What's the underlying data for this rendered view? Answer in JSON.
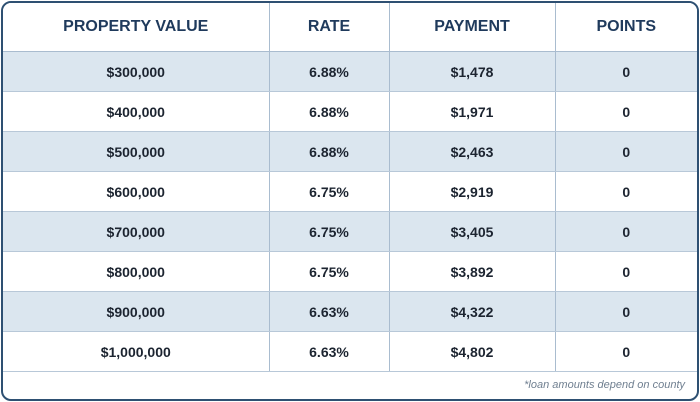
{
  "table": {
    "headers": [
      "PROPERTY VALUE",
      "RATE",
      "PAYMENT",
      "POINTS"
    ],
    "rows": [
      [
        "$300,000",
        "6.88%",
        "$1,478",
        "0"
      ],
      [
        "$400,000",
        "6.88%",
        "$1,971",
        "0"
      ],
      [
        "$500,000",
        "6.88%",
        "$2,463",
        "0"
      ],
      [
        "$600,000",
        "6.75%",
        "$2,919",
        "0"
      ],
      [
        "$700,000",
        "6.75%",
        "$3,405",
        "0"
      ],
      [
        "$800,000",
        "6.75%",
        "$3,892",
        "0"
      ],
      [
        "$900,000",
        "6.63%",
        "$4,322",
        "0"
      ],
      [
        "$1,000,000",
        "6.63%",
        "$4,802",
        "0"
      ]
    ]
  },
  "footnote": "*loan amounts depend on county",
  "colors": {
    "border": "#2e5072",
    "header_text": "#1f3a5c",
    "stripe": "#dbe6ef"
  }
}
